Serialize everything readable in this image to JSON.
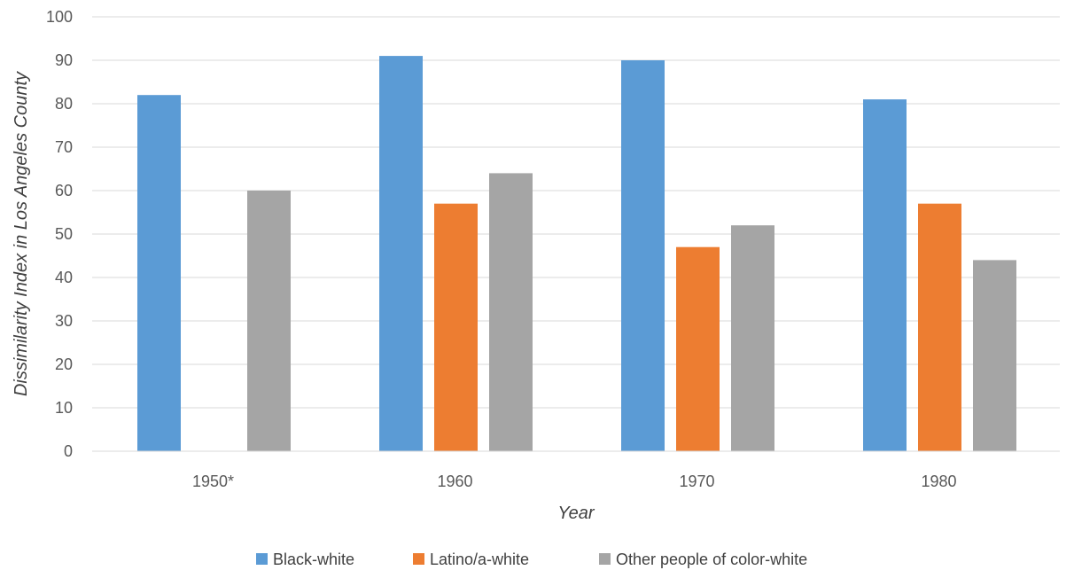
{
  "chart_data": {
    "type": "bar",
    "title": "",
    "xlabel": "Year",
    "ylabel": "Dissimilarity Index in Los Angeles County",
    "categories": [
      "1950*",
      "1960",
      "1970",
      "1980"
    ],
    "ylim": [
      0,
      100
    ],
    "yticks": [
      "0",
      "10",
      "20",
      "30",
      "40",
      "50",
      "60",
      "70",
      "80",
      "90",
      "100"
    ],
    "grid": true,
    "legend_position": "bottom",
    "series": [
      {
        "name": "Black-white",
        "color": "#5B9BD5",
        "values": [
          82,
          91,
          90,
          81
        ]
      },
      {
        "name": "Latino/a-white",
        "color": "#ED7D31",
        "values": [
          null,
          57,
          47,
          57
        ]
      },
      {
        "name": "Other people of color-white",
        "color": "#A5A5A5",
        "values": [
          60,
          64,
          52,
          44
        ]
      }
    ]
  }
}
